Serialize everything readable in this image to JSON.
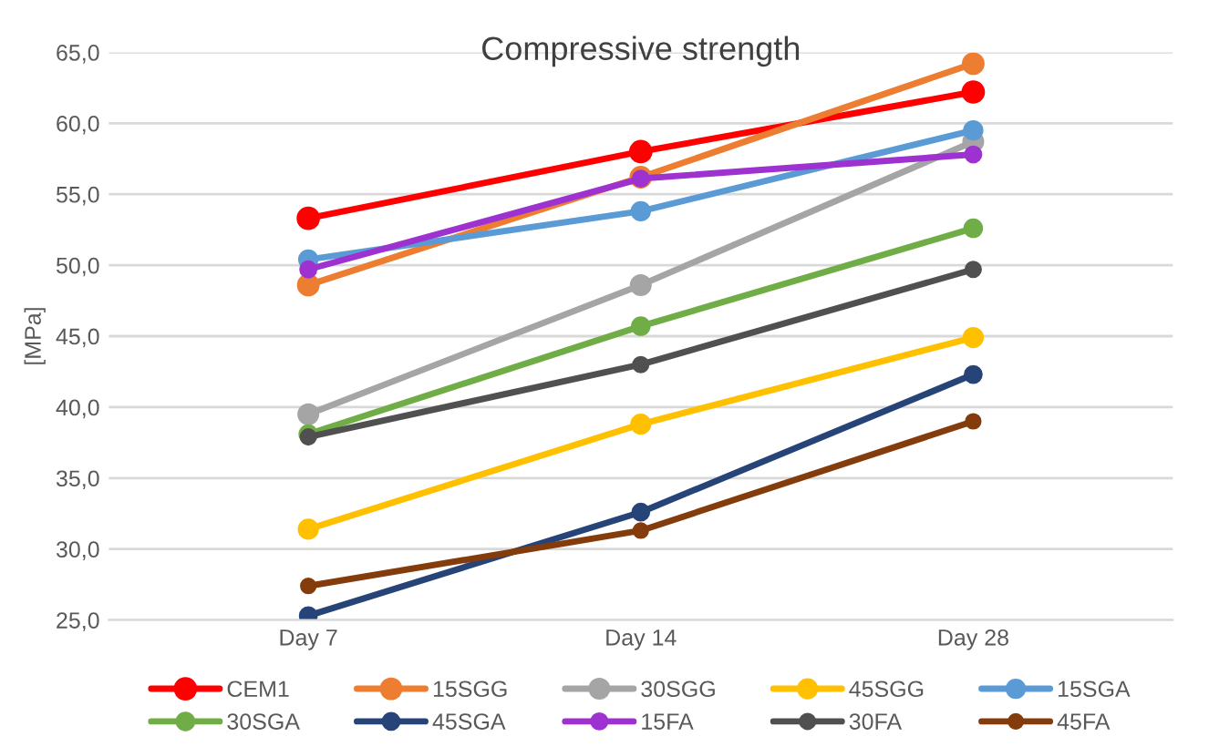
{
  "chart_data": {
    "type": "line",
    "title": "Compressive strength",
    "ylabel": "[MPa]",
    "categories": [
      "Day 7",
      "Day 14",
      "Day 28"
    ],
    "series": [
      {
        "name": "CEM1",
        "color": "#ff0000",
        "values": [
          53.3,
          58.0,
          62.2
        ]
      },
      {
        "name": "15SGG",
        "color": "#ed7d31",
        "values": [
          48.6,
          56.2,
          64.2
        ]
      },
      {
        "name": "30SGG",
        "color": "#a5a5a5",
        "values": [
          39.5,
          48.6,
          58.7
        ]
      },
      {
        "name": "45SGG",
        "color": "#ffc000",
        "values": [
          31.4,
          38.8,
          44.9
        ]
      },
      {
        "name": "15SGA",
        "color": "#5b9bd5",
        "values": [
          50.4,
          53.8,
          59.5
        ]
      },
      {
        "name": "30SGA",
        "color": "#70ad47",
        "values": [
          38.1,
          45.7,
          52.6
        ]
      },
      {
        "name": "45SGA",
        "color": "#264478",
        "values": [
          25.3,
          32.6,
          42.3
        ]
      },
      {
        "name": "15FA",
        "color": "#9e32d0",
        "values": [
          49.7,
          56.1,
          57.8
        ]
      },
      {
        "name": "30FA",
        "color": "#505050",
        "values": [
          37.9,
          43.0,
          49.7
        ]
      },
      {
        "name": "45FA",
        "color": "#843c0c",
        "values": [
          27.4,
          31.3,
          39.0
        ]
      }
    ],
    "ylim": [
      25,
      65
    ],
    "yticks": [
      {
        "value": 25,
        "label": "25,0"
      },
      {
        "value": 30,
        "label": "30,0"
      },
      {
        "value": 35,
        "label": "35,0"
      },
      {
        "value": 40,
        "label": "40,0"
      },
      {
        "value": 45,
        "label": "45,0"
      },
      {
        "value": 50,
        "label": "50,0"
      },
      {
        "value": 55,
        "label": "55,0"
      },
      {
        "value": 60,
        "label": "60,0"
      },
      {
        "value": 65,
        "label": "65,0"
      }
    ],
    "grid": "y",
    "legend": "bottom",
    "marker": "circle",
    "line_style": "solid"
  }
}
